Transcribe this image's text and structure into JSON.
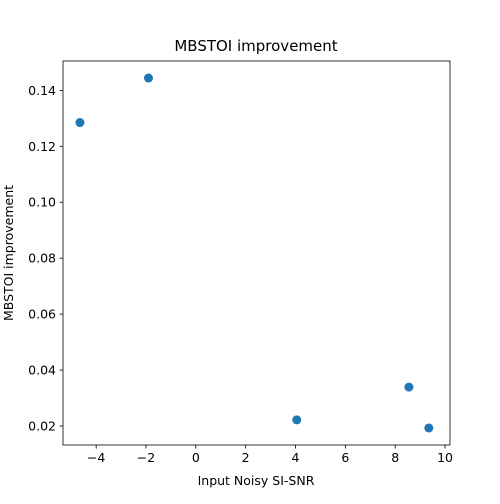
{
  "chart_data": {
    "type": "scatter",
    "title": "MBSTOI improvement",
    "xlabel": "Input Noisy SI-SNR",
    "ylabel": "MBSTOI improvement",
    "xlim": [
      -5.33,
      10.2
    ],
    "ylim": [
      0.0132,
      0.1505
    ],
    "xticks": [
      -4,
      -2,
      0,
      2,
      4,
      6,
      8,
      10
    ],
    "xtick_labels": [
      "−4",
      "−2",
      "0",
      "2",
      "4",
      "6",
      "8",
      "10"
    ],
    "yticks": [
      0.02,
      0.04,
      0.06,
      0.08,
      0.1,
      0.12,
      0.14
    ],
    "ytick_labels": [
      "0.02",
      "0.04",
      "0.06",
      "0.08",
      "0.10",
      "0.12",
      "0.14"
    ],
    "grid": false,
    "marker_color": "#1f77b4",
    "points": [
      {
        "x": -4.65,
        "y": 0.1285
      },
      {
        "x": -1.9,
        "y": 0.1444
      },
      {
        "x": 4.05,
        "y": 0.0222
      },
      {
        "x": 8.55,
        "y": 0.0339
      },
      {
        "x": 9.35,
        "y": 0.0193
      }
    ]
  }
}
